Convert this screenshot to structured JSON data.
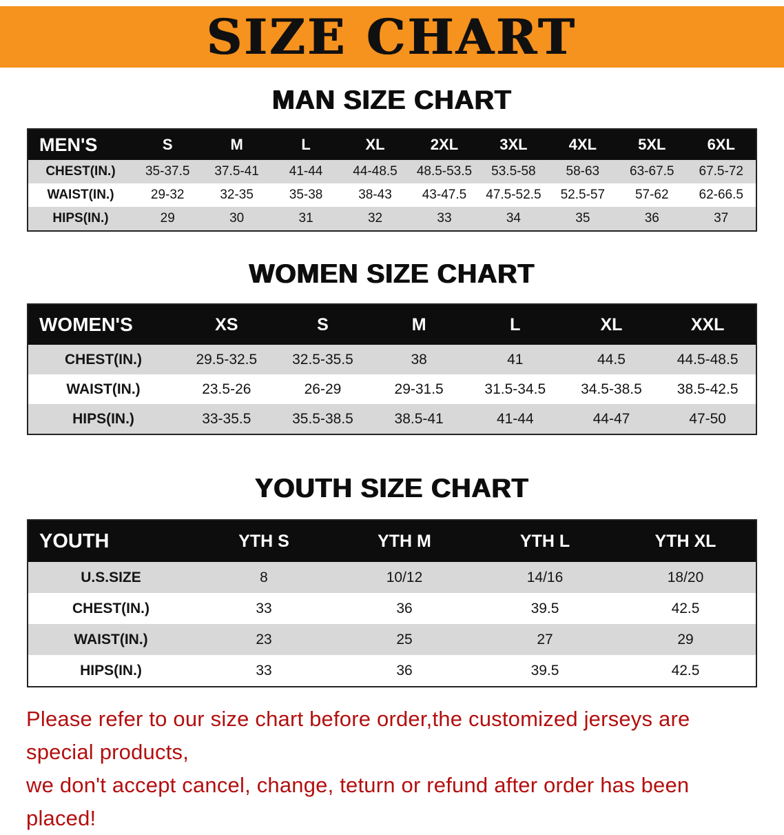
{
  "banner": {
    "title": "SIZE CHART",
    "bg_color": "#f6921e",
    "text_color": "#101010"
  },
  "sections": [
    {
      "heading": "MAN SIZE CHART",
      "table": {
        "header": [
          "MEN'S",
          "S",
          "M",
          "L",
          "XL",
          "2XL",
          "3XL",
          "4XL",
          "5XL",
          "6XL"
        ],
        "rows": [
          [
            "CHEST(IN.)",
            "35-37.5",
            "37.5-41",
            "41-44",
            "44-48.5",
            "48.5-53.5",
            "53.5-58",
            "58-63",
            "63-67.5",
            "67.5-72"
          ],
          [
            "WAIST(IN.)",
            "29-32",
            "32-35",
            "35-38",
            "38-43",
            "43-47.5",
            "47.5-52.5",
            "52.5-57",
            "57-62",
            "62-66.5"
          ],
          [
            "HIPS(IN.)",
            "29",
            "30",
            "31",
            "32",
            "33",
            "34",
            "35",
            "36",
            "37"
          ]
        ]
      }
    },
    {
      "heading": "WOMEN SIZE CHART",
      "table": {
        "header": [
          "WOMEN'S",
          "XS",
          "S",
          "M",
          "L",
          "XL",
          "XXL"
        ],
        "rows": [
          [
            "CHEST(IN.)",
            "29.5-32.5",
            "32.5-35.5",
            "38",
            "41",
            "44.5",
            "44.5-48.5"
          ],
          [
            "WAIST(IN.)",
            "23.5-26",
            "26-29",
            "29-31.5",
            "31.5-34.5",
            "34.5-38.5",
            "38.5-42.5"
          ],
          [
            "HIPS(IN.)",
            "33-35.5",
            "35.5-38.5",
            "38.5-41",
            "41-44",
            "44-47",
            "47-50"
          ]
        ]
      }
    },
    {
      "heading": "YOUTH SIZE CHART",
      "table": {
        "header": [
          "YOUTH",
          "YTH S",
          "YTH M",
          "YTH L",
          "YTH XL"
        ],
        "rows": [
          [
            "U.S.SIZE",
            "8",
            "10/12",
            "14/16",
            "18/20"
          ],
          [
            "CHEST(IN.)",
            "33",
            "36",
            "39.5",
            "42.5"
          ],
          [
            "WAIST(IN.)",
            "23",
            "25",
            "27",
            "29"
          ],
          [
            "HIPS(IN.)",
            "33",
            "36",
            "39.5",
            "42.5"
          ]
        ]
      }
    }
  ],
  "disclaimer": {
    "line1": "Please refer to our size chart before order,the customized jerseys are special products,",
    "line2": "we don't accept cancel, change, teturn or refund after order has been placed!",
    "text_color": "#b30f0f"
  },
  "table_colors": {
    "header_bg": "#0d0d0d",
    "header_text": "#ffffff",
    "odd_row_bg": "#d8d8d8",
    "even_row_bg": "#ffffff"
  }
}
